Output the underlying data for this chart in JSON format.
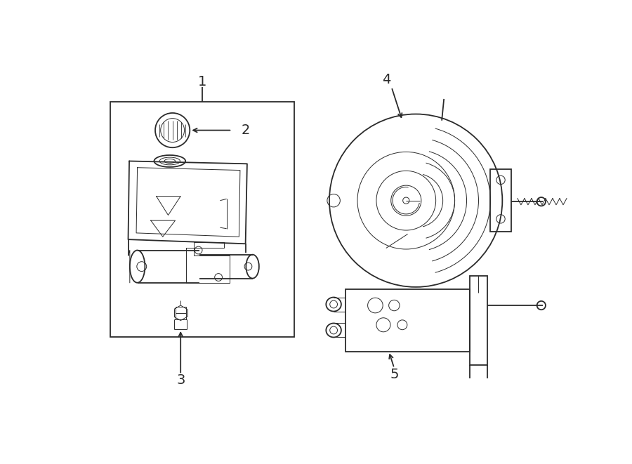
{
  "bg_color": "#ffffff",
  "line_color": "#2a2a2a",
  "lw": 1.3,
  "thin_lw": 0.7,
  "fig_width": 9.0,
  "fig_height": 6.61
}
